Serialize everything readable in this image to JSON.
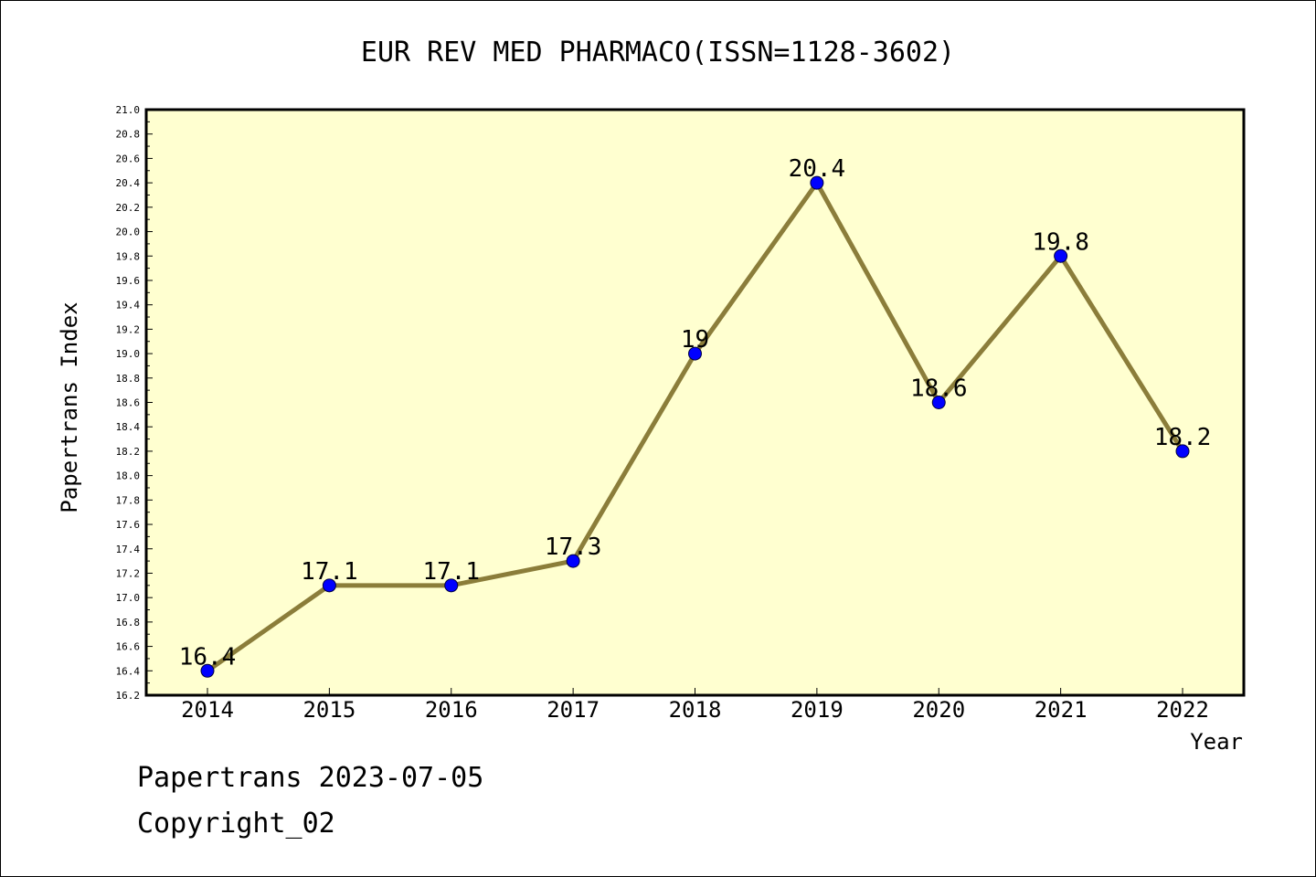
{
  "chart_data": {
    "type": "line",
    "title": "EUR REV MED PHARMACO(ISSN=1128-3602)",
    "xlabel": "Year",
    "ylabel": "Papertrans Index",
    "categories": [
      "2014",
      "2015",
      "2016",
      "2017",
      "2018",
      "2019",
      "2020",
      "2021",
      "2022"
    ],
    "series": [
      {
        "values": [
          16.4,
          17.1,
          17.1,
          17.3,
          19,
          20.4,
          18.6,
          19.8,
          18.2
        ]
      }
    ],
    "data_labels": [
      "16.4",
      "17.1",
      "17.1",
      "17.3",
      "19",
      "20.4",
      "18.6",
      "19.8",
      "18.2"
    ],
    "ylim": [
      16.2,
      21.0
    ],
    "ytick_step": 0.2,
    "ytick_labels": [
      "16.2",
      "16.4",
      "16.6",
      "16.8",
      "17.0",
      "17.2",
      "17.4",
      "17.6",
      "17.8",
      "18.0",
      "18.2",
      "18.4",
      "18.6",
      "18.8",
      "19.0",
      "19.2",
      "19.4",
      "19.6",
      "19.8",
      "20.0",
      "20.2",
      "20.4",
      "20.6",
      "20.8",
      "21.0"
    ],
    "grid": false,
    "colors": {
      "plot_background": "#ffffd0",
      "line": "#8b7d3a",
      "marker": "#0000ff"
    }
  },
  "footer": {
    "date_line": "Papertrans 2023-07-05",
    "copyright": "Copyright_02"
  }
}
